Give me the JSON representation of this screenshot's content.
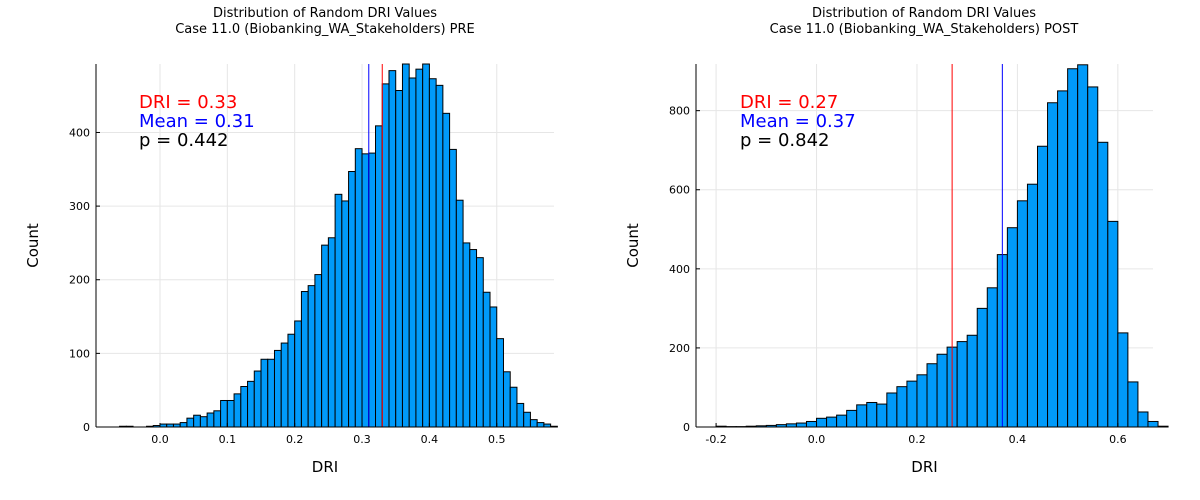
{
  "chart_data": [
    {
      "type": "bar",
      "title": [
        "Distribution of Random DRI Values",
        "Case 11.0 (Biobanking_WA_Stakeholders) PRE"
      ],
      "xlabel": "DRI",
      "ylabel": "Count",
      "xlim": [
        -0.095,
        0.585
      ],
      "ylim": [
        0,
        493
      ],
      "xticks": [
        0.0,
        0.1,
        0.2,
        0.3,
        0.4,
        0.5
      ],
      "xtick_labels": [
        "0.0",
        "0.1",
        "0.2",
        "0.3",
        "0.4",
        "0.5"
      ],
      "yticks": [
        0,
        100,
        200,
        300,
        400
      ],
      "ytick_labels": [
        "0",
        "100",
        "200",
        "300",
        "400"
      ],
      "grid": true,
      "bin_start": -0.06,
      "bin_width": 0.01,
      "values": [
        1,
        1,
        0,
        0,
        1,
        2,
        4,
        4,
        4,
        6,
        12,
        16,
        14,
        19,
        22,
        36,
        36,
        45,
        55,
        62,
        76,
        92,
        92,
        104,
        114,
        126,
        144,
        184,
        192,
        207,
        247,
        257,
        316,
        307,
        347,
        378,
        371,
        372,
        409,
        466,
        484,
        457,
        497,
        474,
        486,
        494,
        473,
        464,
        426,
        377,
        308,
        250,
        241,
        230,
        183,
        163,
        120,
        75,
        54,
        32,
        20,
        10,
        6,
        4,
        1
      ],
      "lines": [
        {
          "x": 0.33,
          "color": "#ff0000"
        },
        {
          "x": 0.31,
          "color": "#0000ff"
        }
      ],
      "annotations": [
        {
          "text": "DRI = 0.33",
          "color": "#ff0000"
        },
        {
          "text": "Mean = 0.31",
          "color": "#0000ff"
        },
        {
          "text": "p = 0.442",
          "color": "#000000"
        }
      ]
    },
    {
      "type": "bar",
      "title": [
        "Distribution of Random DRI Values",
        "Case 11.0 (Biobanking_WA_Stakeholders) POST"
      ],
      "xlabel": "DRI",
      "ylabel": "Count",
      "xlim": [
        -0.24,
        0.67
      ],
      "ylim": [
        0,
        918
      ],
      "xticks": [
        -0.2,
        0.0,
        0.2,
        0.4,
        0.6
      ],
      "xtick_labels": [
        "-0.2",
        "0.0",
        "0.2",
        "0.4",
        "0.6"
      ],
      "yticks": [
        0,
        200,
        400,
        600,
        800
      ],
      "ytick_labels": [
        "0",
        "200",
        "400",
        "600",
        "800"
      ],
      "grid": true,
      "bin_start": -0.2,
      "bin_width": 0.02,
      "values": [
        2,
        1,
        1,
        2,
        3,
        4,
        6,
        8,
        10,
        14,
        22,
        25,
        30,
        42,
        56,
        62,
        58,
        86,
        102,
        116,
        132,
        160,
        184,
        202,
        216,
        232,
        300,
        352,
        436,
        504,
        572,
        614,
        710,
        820,
        850,
        906,
        916,
        860,
        720,
        520,
        238,
        114,
        38,
        14,
        2
      ],
      "lines": [
        {
          "x": 0.27,
          "color": "#ff0000"
        },
        {
          "x": 0.37,
          "color": "#0000ff"
        }
      ],
      "annotations": [
        {
          "text": "DRI = 0.27",
          "color": "#ff0000"
        },
        {
          "text": "Mean = 0.37",
          "color": "#0000ff"
        },
        {
          "text": "p = 0.842",
          "color": "#000000"
        }
      ]
    }
  ]
}
